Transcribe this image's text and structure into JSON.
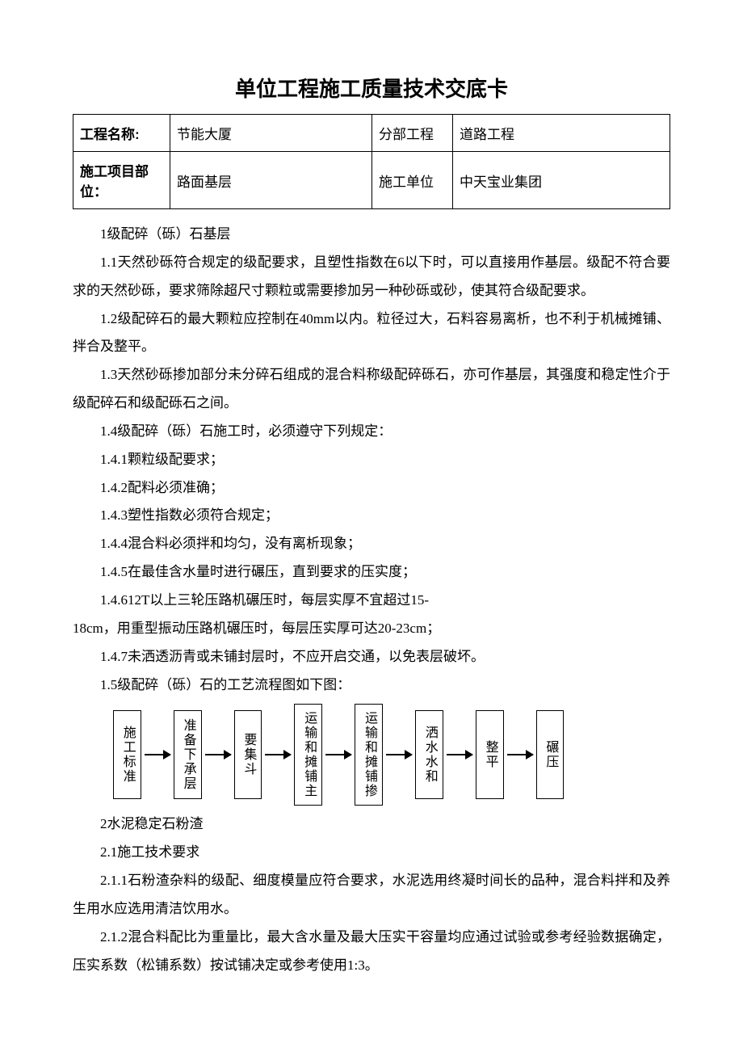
{
  "title": "单位工程施工质量技术交底卡",
  "header": {
    "r1c1_label": "工程名称:",
    "r1c2_value": "节能大厦",
    "r1c3_label": "分部工程",
    "r1c4_value": "道路工程",
    "r2c1_label": "施工项目部位：",
    "r2c2_value": "路面基层",
    "r2c3_label": "施工单位",
    "r2c4_value": "中天宝业集团"
  },
  "paragraphs": {
    "p1": "1级配碎（砾）石基层",
    "p2": "1.1天然砂砾符合规定的级配要求，且塑性指数在6以下时，可以直接用作基层。级配不符合要求的天然砂砾，要求筛除超尺寸颗粒或需要掺加另一种砂砾或砂，使其符合级配要求。",
    "p3": "1.2级配碎石的最大颗粒应控制在40mm以内。粒径过大，石料容易离析，也不利于机械摊铺、拌合及整平。",
    "p4": "1.3天然砂砾掺加部分未分碎石组成的混合料称级配碎砾石，亦可作基层，其强度和稳定性介于级配碎石和级配砾石之间。",
    "p5": "1.4级配碎（砾）石施工时，必须遵守下列规定：",
    "p6": "1.4.1颗粒级配要求；",
    "p7": "1.4.2配料必须准确；",
    "p8": "1.4.3塑性指数必须符合规定；",
    "p9": "1.4.4混合料必须拌和均匀，没有离析现象；",
    "p10": "1.4.5在最佳含水量时进行碾压，直到要求的压实度；",
    "p11a": "1.4.612T以上三轮压路机碾压时，每层实厚不宜超过15-",
    "p11b": "18cm，用重型振动压路机碾压时，每层压实厚可达20-23cm；",
    "p12": "1.4.7未洒透沥青或未铺封层时，不应开启交通，以免表层破坏。",
    "p13": "1.5级配碎（砾）石的工艺流程图如下图：",
    "p14": "2水泥稳定石粉渣",
    "p15": "2.1施工技术要求",
    "p16": "2.1.1石粉渣杂料的级配、细度模量应符合要求，水泥选用终凝时间长的品种，混合料拌和及养生用水应选用清洁饮用水。",
    "p17": "2.1.2混合料配比为重量比，最大含水量及最大压实干容量均应通过试验或参考经验数据确定，压实系数（松铺系数）按试铺决定或参考使用1:3。"
  },
  "flow": {
    "b1": "施工标准",
    "b2": "准备下承层",
    "b3": "要集斗",
    "b4": "运输和摊铺主",
    "b5": "运输和摊铺掺",
    "b6": "洒水水和",
    "b7": "整平",
    "b8": "碾压"
  },
  "style": {
    "text_color": "#000000",
    "bg_color": "#ffffff",
    "border_color": "#000000",
    "title_fontsize": 26,
    "body_fontsize": 17,
    "line_height": 2.05
  }
}
